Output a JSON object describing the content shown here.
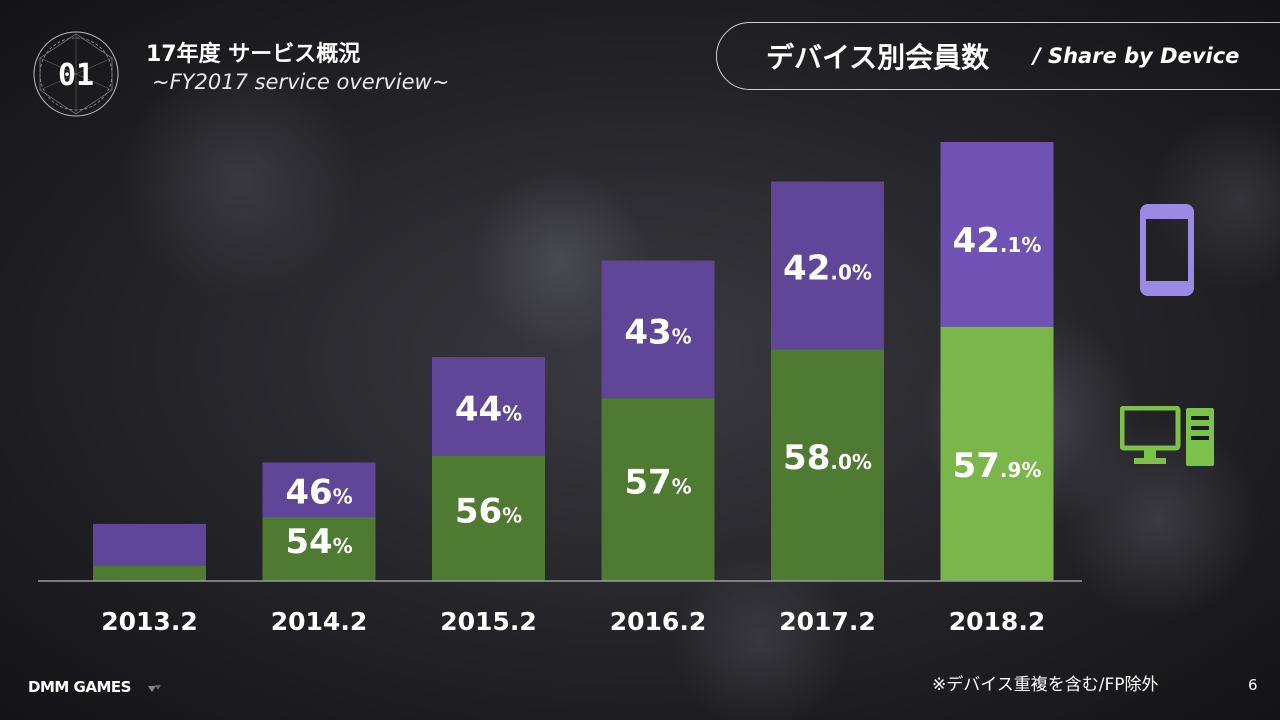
{
  "header": {
    "badge": "01",
    "title": "17年度 サービス概況",
    "subtitle": "~FY2017 service overview~"
  },
  "section": {
    "title_jp": "デバイス別会員数",
    "title_en": "/ Share by Device"
  },
  "icons": {
    "smartphone": "smartphone-icon",
    "pc": "desktop-pc-icon"
  },
  "colors": {
    "smartphone_series": "#5f4699",
    "pc_series": "#4e7a32",
    "pc_series_latest": "#7ab64a",
    "smartphone_series_latest": "#6f52b4",
    "smartphone_icon": "#9a8ae6",
    "pc_icon": "#7cc24a"
  },
  "chart_data": {
    "type": "bar",
    "stacked": true,
    "categories": [
      "2013.2",
      "2014.2",
      "2015.2",
      "2016.2",
      "2017.2",
      "2018.2"
    ],
    "series": [
      {
        "values": [
          null,
          54,
          56,
          57,
          58.0,
          57.9
        ],
        "labels": [
          "",
          "54",
          "56",
          "57",
          "58.0",
          "57.9"
        ]
      },
      {
        "values": [
          null,
          46,
          44,
          43,
          42.0,
          42.1
        ],
        "labels": [
          "",
          "46",
          "44",
          "43",
          "42.0",
          "42.1"
        ]
      }
    ],
    "relative_total_height": [
      0.13,
      0.27,
      0.51,
      0.73,
      0.91,
      1.0
    ],
    "percent_sign": "%"
  },
  "footer": {
    "brand": "DMM GAMES",
    "note": "※デバイス重複を含む/FP除外",
    "page": "6"
  }
}
